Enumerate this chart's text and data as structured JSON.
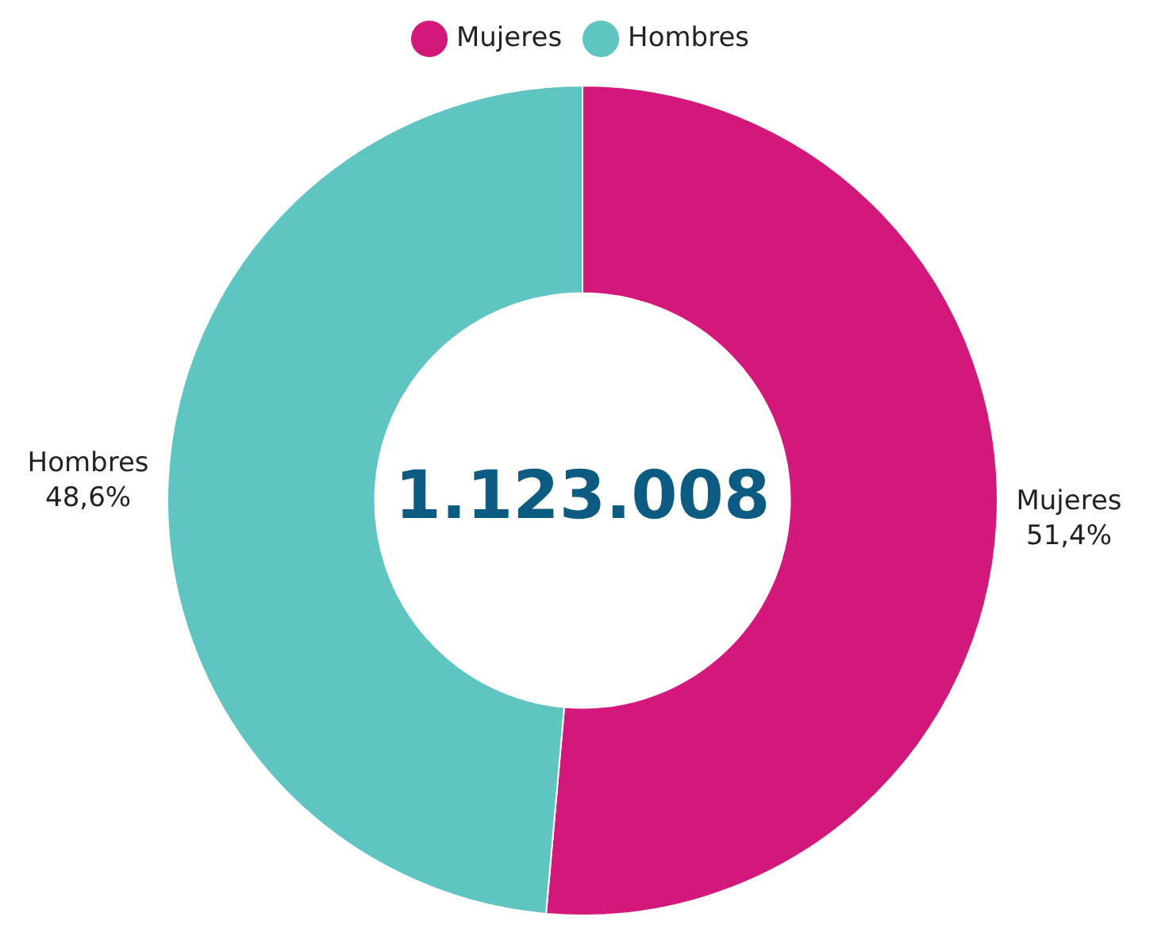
{
  "chart_data": {
    "type": "donut",
    "categories": [
      "Mujeres",
      "Hombres"
    ],
    "values": [
      51.4,
      48.6
    ],
    "colors": [
      "#d4177a",
      "#5ec5c0"
    ],
    "value_labels": [
      "51,4%",
      "48,6%"
    ],
    "legend": "top",
    "annotations": [
      "1.123.008"
    ]
  }
}
